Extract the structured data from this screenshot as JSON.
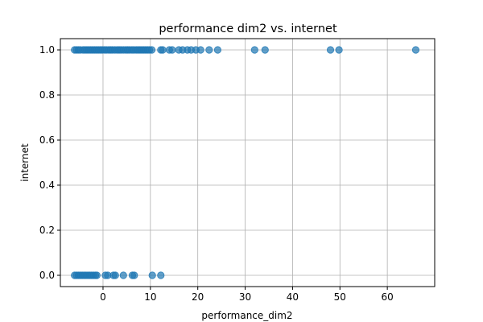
{
  "chart_data": {
    "type": "scatter",
    "title": "performance dim2 vs. internet",
    "xlabel": "performance_dim2",
    "ylabel": "internet",
    "xlim": [
      -9,
      70
    ],
    "ylim": [
      -0.05,
      1.05
    ],
    "xticks": [
      0,
      10,
      20,
      30,
      40,
      50,
      60
    ],
    "yticks": [
      0.0,
      0.2,
      0.4,
      0.6,
      0.8,
      1.0
    ],
    "xtick_labels": [
      "0",
      "10",
      "20",
      "30",
      "40",
      "50",
      "60"
    ],
    "ytick_labels": [
      "0.0",
      "0.2",
      "0.4",
      "0.6",
      "0.8",
      "1.0"
    ],
    "grid": true,
    "marker_color": "#1f77b4",
    "series": [
      {
        "points": [
          [
            -6,
            1
          ],
          [
            -5.6,
            1
          ],
          [
            -5.2,
            1
          ],
          [
            -4.8,
            1
          ],
          [
            -4.2,
            1
          ],
          [
            -3.8,
            1
          ],
          [
            -3.4,
            1
          ],
          [
            -3,
            1
          ],
          [
            -2.6,
            1
          ],
          [
            -2.2,
            1
          ],
          [
            -1.8,
            1
          ],
          [
            -1.4,
            1
          ],
          [
            -1,
            1
          ],
          [
            -0.6,
            1
          ],
          [
            -0.2,
            1
          ],
          [
            0.3,
            1
          ],
          [
            0.7,
            1
          ],
          [
            1.2,
            1
          ],
          [
            1.6,
            1
          ],
          [
            2,
            1
          ],
          [
            2.5,
            1
          ],
          [
            3,
            1
          ],
          [
            3.4,
            1
          ],
          [
            3.8,
            1
          ],
          [
            4.3,
            1
          ],
          [
            4.8,
            1
          ],
          [
            5.2,
            1
          ],
          [
            5.6,
            1
          ],
          [
            6.1,
            1
          ],
          [
            6.5,
            1
          ],
          [
            7,
            1
          ],
          [
            7.4,
            1
          ],
          [
            7.8,
            1
          ],
          [
            8.2,
            1
          ],
          [
            8.6,
            1
          ],
          [
            9,
            1
          ],
          [
            9.4,
            1
          ],
          [
            9.8,
            1
          ],
          [
            10.3,
            1
          ],
          [
            12.2,
            1
          ],
          [
            12.6,
            1
          ],
          [
            14,
            1
          ],
          [
            14.6,
            1
          ],
          [
            16,
            1
          ],
          [
            16.8,
            1
          ],
          [
            17.8,
            1
          ],
          [
            18.6,
            1
          ],
          [
            19.6,
            1
          ],
          [
            20.6,
            1
          ],
          [
            22.4,
            1
          ],
          [
            24.2,
            1
          ],
          [
            32,
            1
          ],
          [
            34.2,
            1
          ],
          [
            48,
            1
          ],
          [
            49.8,
            1
          ],
          [
            66,
            1
          ],
          [
            -6,
            0
          ],
          [
            -5.6,
            0
          ],
          [
            -5.2,
            0
          ],
          [
            -4.8,
            0
          ],
          [
            -4.4,
            0
          ],
          [
            -4,
            0
          ],
          [
            -3.6,
            0
          ],
          [
            -3.2,
            0
          ],
          [
            -2.8,
            0
          ],
          [
            -2.4,
            0
          ],
          [
            -2,
            0
          ],
          [
            -1.6,
            0
          ],
          [
            -1.3,
            0
          ],
          [
            0.5,
            0
          ],
          [
            1,
            0
          ],
          [
            2.2,
            0
          ],
          [
            2.6,
            0
          ],
          [
            4.3,
            0
          ],
          [
            6.2,
            0
          ],
          [
            6.6,
            0
          ],
          [
            10.4,
            0
          ],
          [
            12.2,
            0
          ]
        ]
      }
    ]
  }
}
